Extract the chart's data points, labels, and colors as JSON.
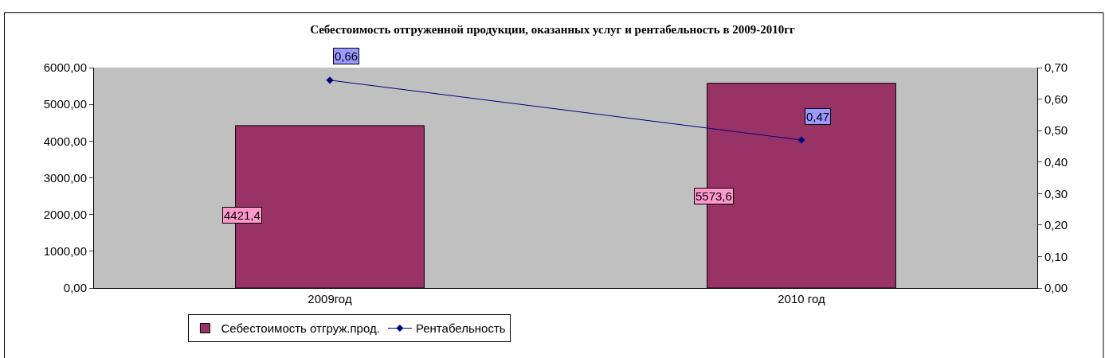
{
  "chart_data": {
    "type": "bar",
    "title": "Себестоимость отгруженной продукции, оказанных услуг и рентабельность в 2009-2010гг",
    "categories": [
      "2009год",
      "2010 год"
    ],
    "series": [
      {
        "name": "Себестоимость отгруж.прод.",
        "color": "#993366",
        "values": [
          4421.4,
          5573.6
        ],
        "value_labels": [
          "4421,4",
          "5573,6"
        ]
      },
      {
        "name": "Рентабельность",
        "type": "line",
        "axis": "y2",
        "color": "#000080",
        "marker": "diamond",
        "values": [
          0.66,
          0.47
        ],
        "value_labels": [
          "0,66",
          "0,47"
        ]
      }
    ],
    "ylim": [
      0,
      6000
    ],
    "yticks": [
      {
        "value": 0,
        "label": "0,00"
      },
      {
        "value": 1000,
        "label": "1000,00"
      },
      {
        "value": 2000,
        "label": "2000,00"
      },
      {
        "value": 3000,
        "label": "3000,00"
      },
      {
        "value": 4000,
        "label": "4000,00"
      },
      {
        "value": 5000,
        "label": "5000,00"
      },
      {
        "value": 6000,
        "label": "6000,00"
      }
    ],
    "y2lim": [
      0,
      0.7
    ],
    "y2ticks": [
      {
        "value": 0,
        "label": "0,00"
      },
      {
        "value": 0.1,
        "label": "0,10"
      },
      {
        "value": 0.2,
        "label": "0,20"
      },
      {
        "value": 0.3,
        "label": "0,30"
      },
      {
        "value": 0.4,
        "label": "0,40"
      },
      {
        "value": 0.5,
        "label": "0,50"
      },
      {
        "value": 0.6,
        "label": "0,60"
      },
      {
        "value": 0.7,
        "label": "0,70"
      }
    ],
    "grid": false,
    "legend": "bottom"
  }
}
